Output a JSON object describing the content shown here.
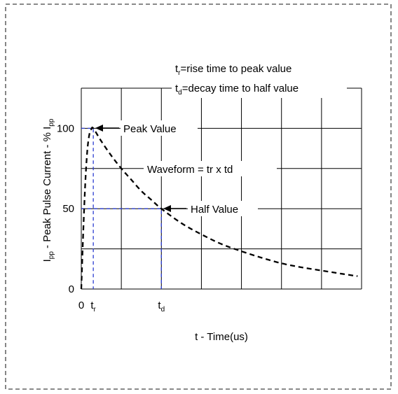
{
  "chart_data": {
    "type": "line",
    "title": "",
    "xlabel": "t - Time(us)",
    "ylabel_parts": {
      "main": "I",
      "main_sub": "pp",
      "rest": " - Peak Pulse Current - % I",
      "rest_sub": "pp"
    },
    "xlim": [
      0,
      7
    ],
    "ylim": [
      0,
      125
    ],
    "grid": true,
    "y_ticks": [
      0,
      50,
      100
    ],
    "x_ticks": [
      {
        "value": 0,
        "label": "0",
        "sub": ""
      },
      {
        "value": 0.3,
        "label": "t",
        "sub": "r"
      },
      {
        "value": 2,
        "label": "t",
        "sub": "d"
      }
    ],
    "series": [
      {
        "style": "dashed",
        "color": "#000000",
        "x": [
          0,
          0.05,
          0.1,
          0.15,
          0.2,
          0.25,
          0.3,
          0.5,
          0.75,
          1.0,
          1.25,
          1.5,
          1.75,
          2.0,
          2.5,
          3.0,
          3.5,
          4.0,
          4.5,
          5.0,
          5.5,
          6.0,
          6.5,
          6.9
        ],
        "y": [
          0,
          36,
          66,
          86,
          96,
          99.5,
          100,
          92,
          83,
          75,
          68,
          61,
          55.5,
          50,
          41,
          34,
          28,
          23.5,
          19.5,
          16,
          13.5,
          11.5,
          9.5,
          8
        ]
      }
    ],
    "reference_lines": [
      {
        "color": "#2a3bd0",
        "style": "dashed",
        "points": [
          [
            0,
            100
          ],
          [
            0.3,
            100
          ],
          [
            0.3,
            0
          ]
        ]
      },
      {
        "color": "#2a3bd0",
        "style": "dashed",
        "points": [
          [
            0,
            50
          ],
          [
            2,
            50
          ],
          [
            2,
            0
          ]
        ]
      }
    ],
    "annotations": {
      "peak_value": "Peak Value",
      "waveform": "Waveform = tr x td",
      "half_value": "Half Value",
      "legend_tr_main": "t",
      "legend_tr_sub": "r",
      "legend_tr_text": "=rise time to peak value",
      "legend_td_main": "t",
      "legend_td_sub": "d",
      "legend_td_text": "=decay time to half value"
    },
    "colors": {
      "border": "#444444",
      "grid": "#000000",
      "curve": "#000000",
      "reference": "#2a3bd0"
    }
  }
}
